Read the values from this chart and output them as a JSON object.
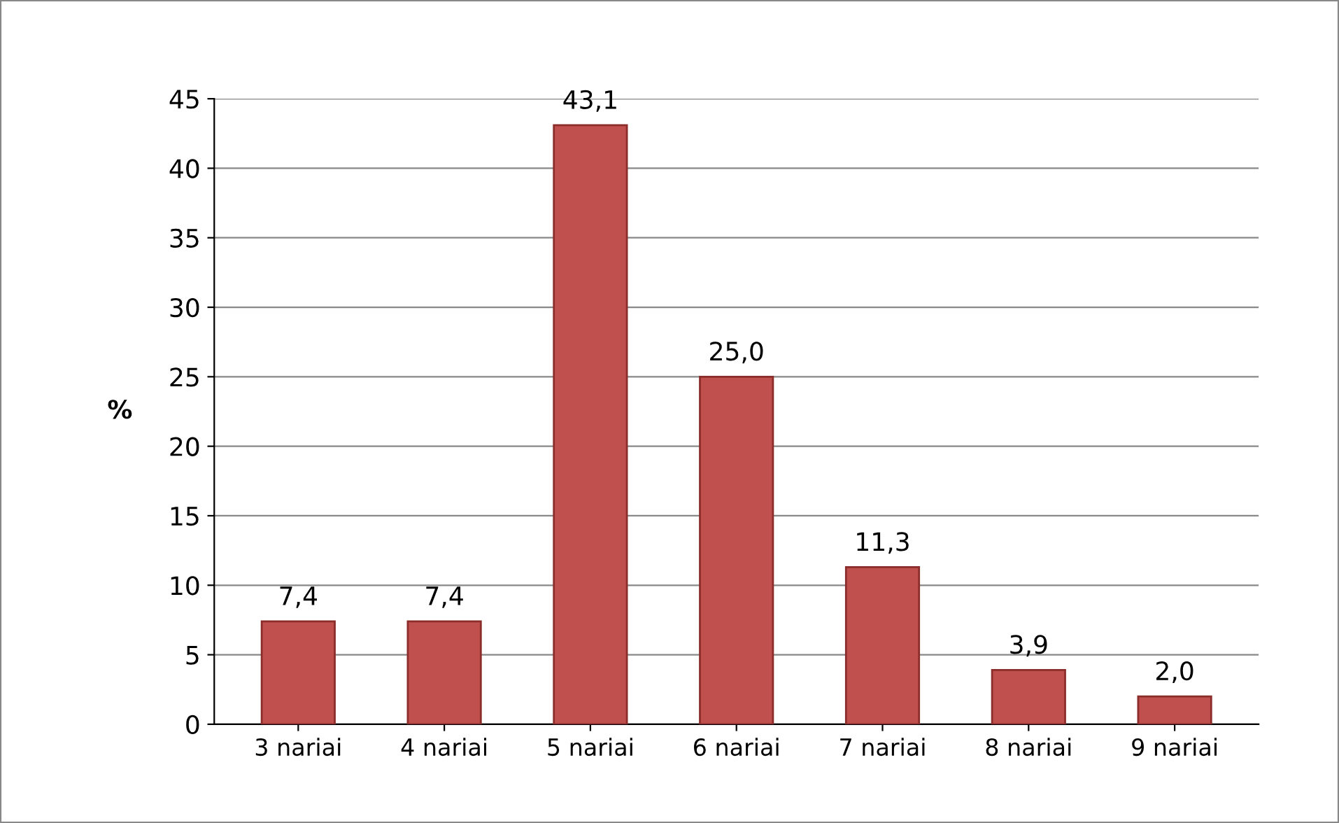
{
  "chart_data": {
    "type": "bar",
    "ylabel": "%",
    "categories": [
      "3 nariai",
      "4 nariai",
      "5 nariai",
      "6 nariai",
      "7 nariai",
      "8 nariai",
      "9 nariai"
    ],
    "values": [
      7.4,
      7.4,
      43.1,
      25.0,
      11.3,
      3.9,
      2.0
    ],
    "value_labels": [
      "7,4",
      "7,4",
      "43,1",
      "25,0",
      "11,3",
      "3,9",
      "2,0"
    ],
    "color": "#c0504d",
    "ylim": [
      0,
      45
    ],
    "yticks": [
      0,
      5,
      10,
      15,
      20,
      25,
      30,
      35,
      40,
      45
    ],
    "grid": "y",
    "legend": false
  }
}
